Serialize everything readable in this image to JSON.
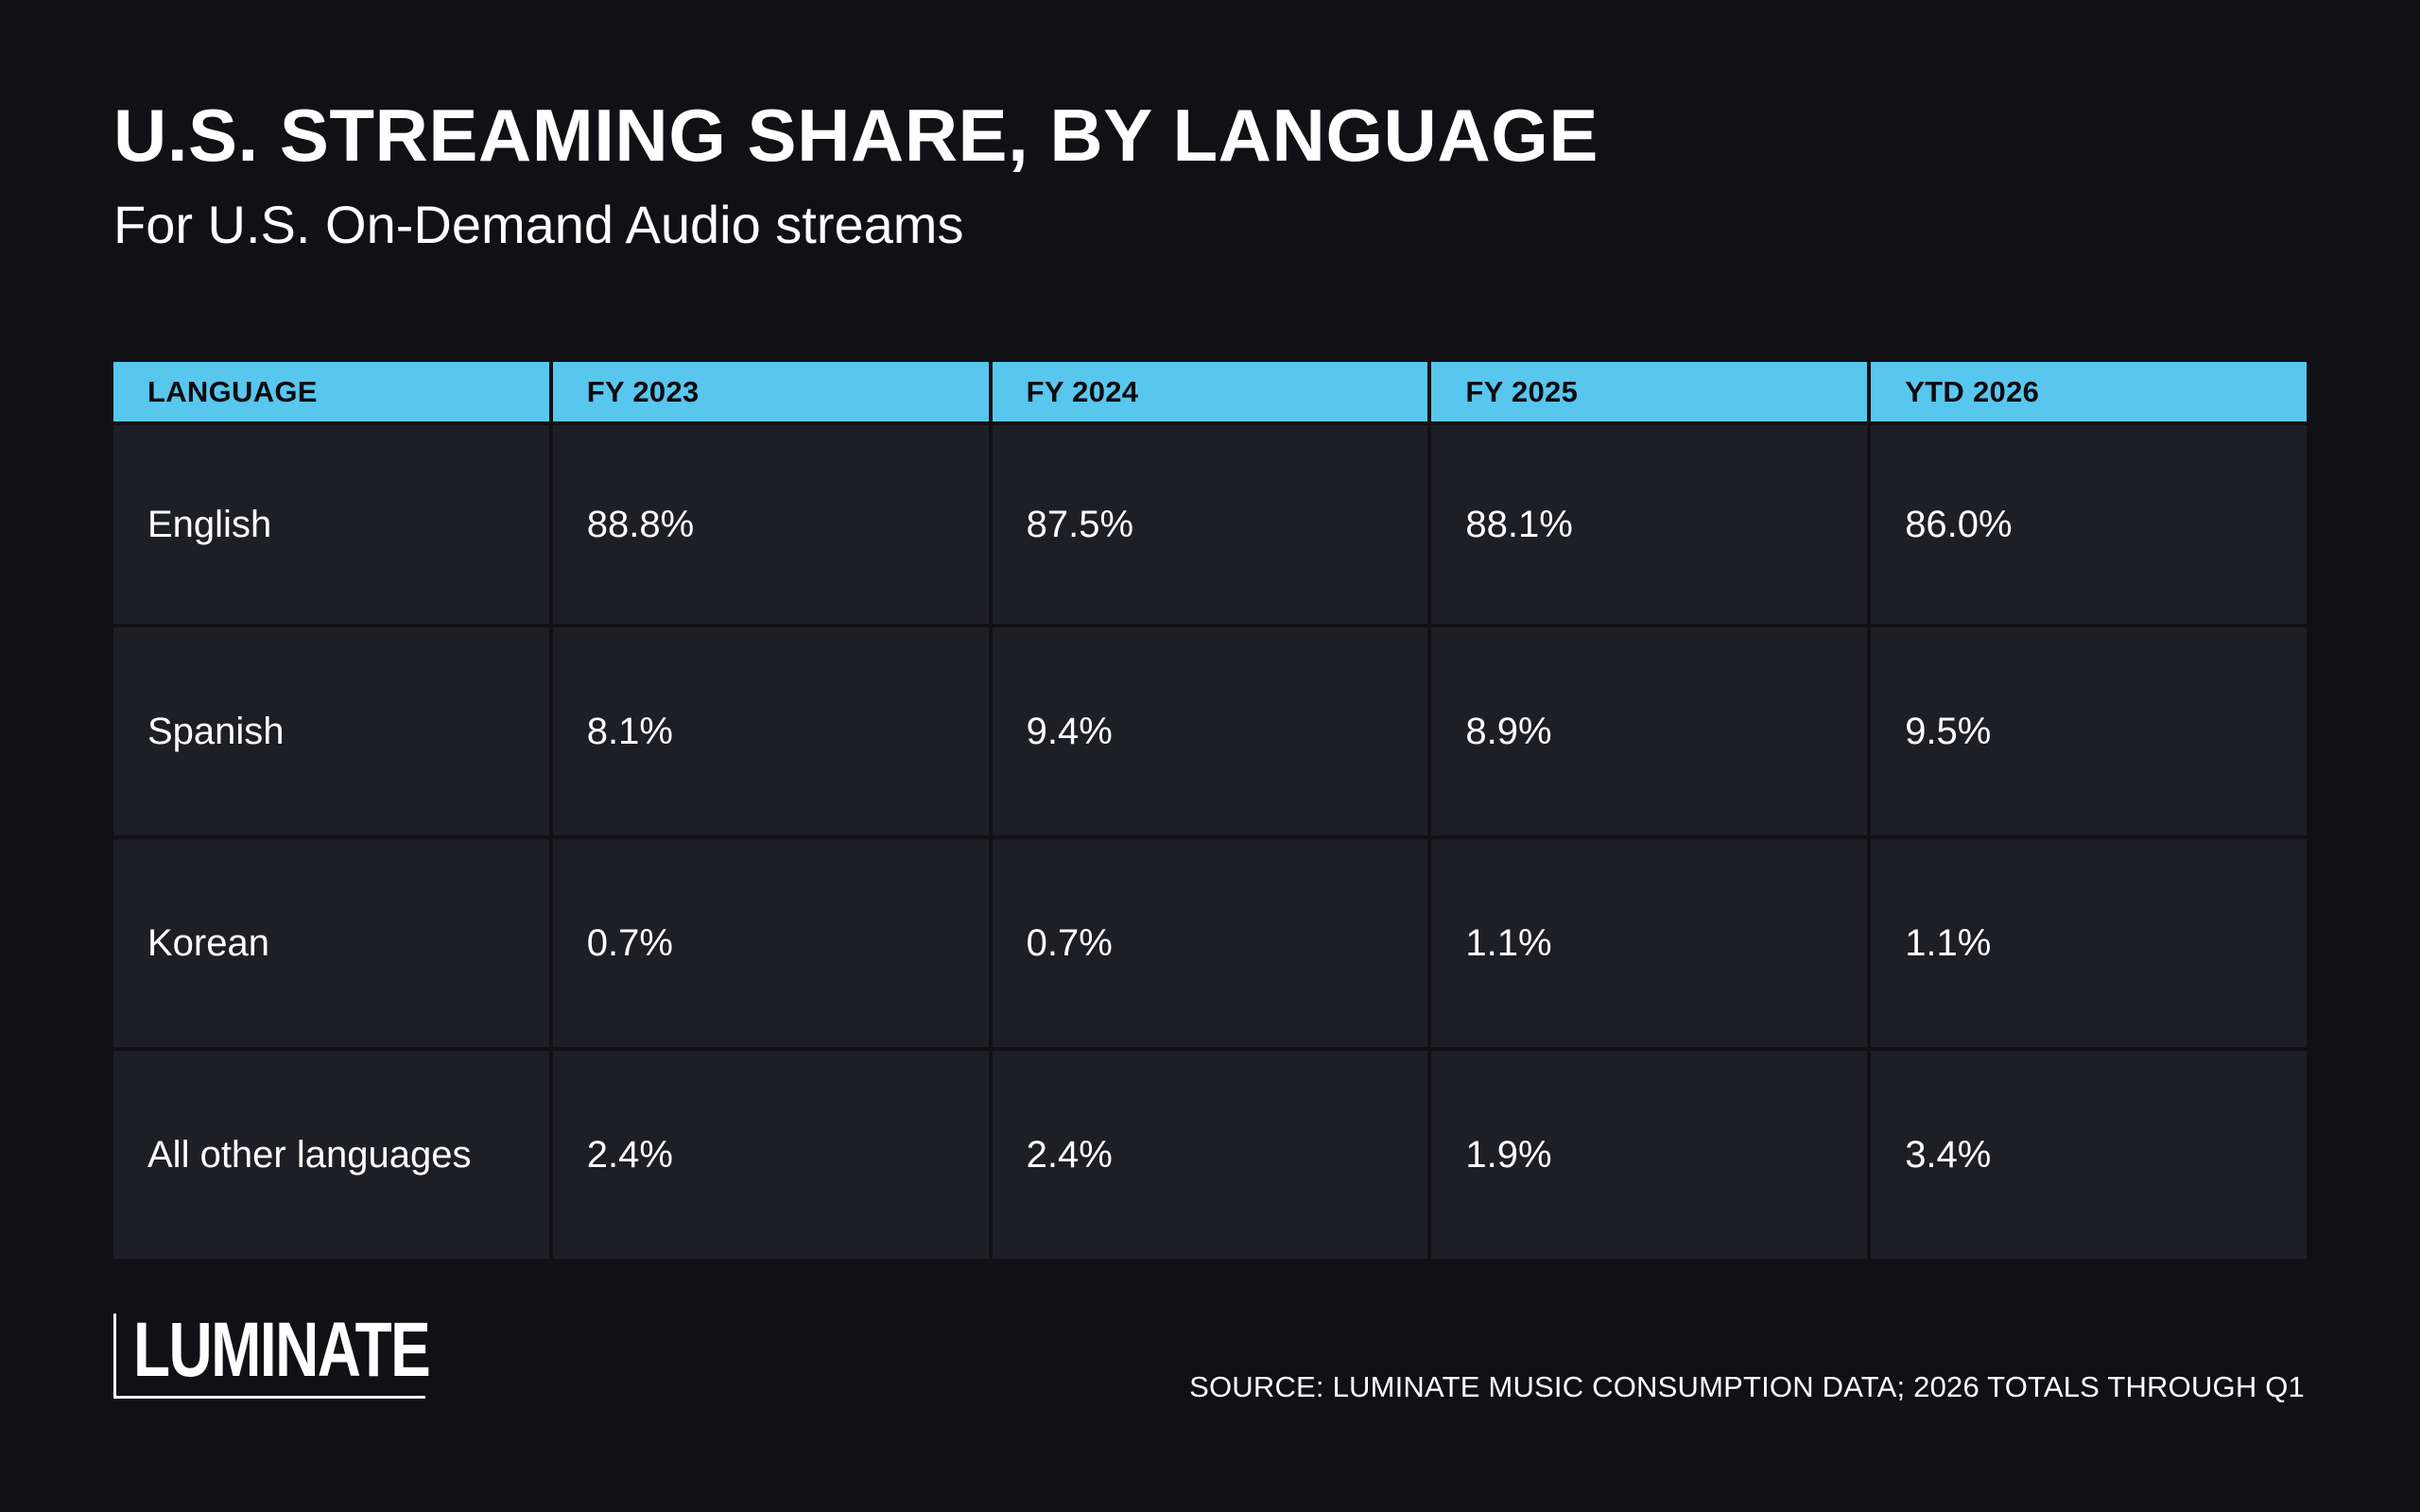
{
  "header": {
    "title": "U.S. STREAMING SHARE, BY LANGUAGE",
    "subtitle": "For U.S. On-Demand Audio streams"
  },
  "chart_data": {
    "type": "table",
    "title": "U.S. STREAMING SHARE, BY LANGUAGE",
    "subtitle": "For U.S. On-Demand Audio streams",
    "columns": [
      "LANGUAGE",
      "FY 2023",
      "FY 2024",
      "FY 2025",
      "YTD 2026"
    ],
    "rows": [
      [
        "English",
        "88.8%",
        "87.5%",
        "88.1%",
        "86.0%"
      ],
      [
        "Spanish",
        "8.1%",
        "9.4%",
        "8.9%",
        "9.5%"
      ],
      [
        "Korean",
        "0.7%",
        "0.7%",
        "1.1%",
        "1.1%"
      ],
      [
        "All other languages",
        "2.4%",
        "2.4%",
        "1.9%",
        "3.4%"
      ]
    ],
    "header_color": "#59c6ee",
    "cell_color": "#1e1f24",
    "background_color": "#111115"
  },
  "footer": {
    "logo_text": "LUMINATE",
    "source": "SOURCE: LUMINATE MUSIC CONSUMPTION DATA; 2026 TOTALS THROUGH Q1"
  }
}
